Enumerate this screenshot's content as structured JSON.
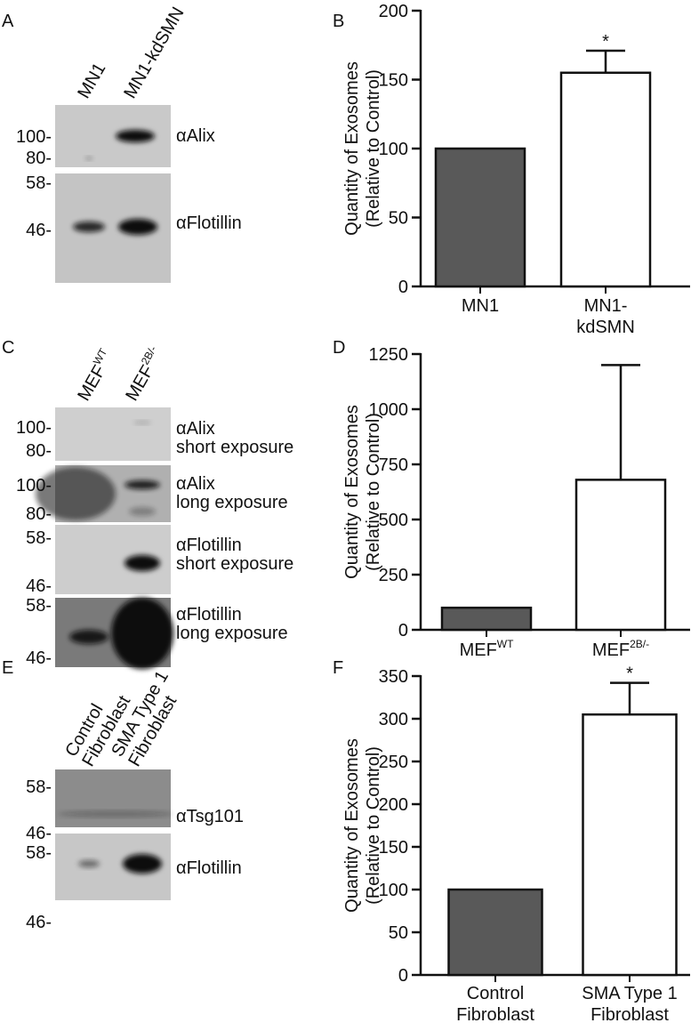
{
  "panels": [
    "A",
    "B",
    "C",
    "D",
    "E",
    "F"
  ],
  "blots": [
    {
      "lanes": [
        {
          "text": "MN1"
        },
        {
          "text": "MN1-kdSMN"
        }
      ],
      "strips": [
        {
          "antibody": "αAlix",
          "markers": [
            "100-",
            "80-"
          ]
        },
        {
          "antibody": "αFlotillin",
          "markers": [
            "58-",
            "46-"
          ]
        }
      ]
    },
    {
      "lanes": [
        {
          "text": "MEF",
          "sup": "WT"
        },
        {
          "text": "MEF",
          "sup": "2B/-"
        }
      ],
      "strips": [
        {
          "antibody": "αAlix",
          "exposure": "short exposure",
          "markers": [
            "100-",
            "80-"
          ]
        },
        {
          "antibody": "αAlix",
          "exposure": "long exposure",
          "markers": [
            "100-",
            "80-"
          ]
        },
        {
          "antibody": "αFlotillin",
          "exposure": "short exposure",
          "markers": [
            "58-",
            "46-"
          ]
        },
        {
          "antibody": "αFlotillin",
          "exposure": "long exposure",
          "markers": [
            "58-",
            "46-"
          ]
        }
      ]
    },
    {
      "lanes": [
        {
          "lines": [
            "Control",
            "Fibroblast"
          ]
        },
        {
          "lines": [
            "SMA Type 1",
            "Fibroblast"
          ]
        }
      ],
      "strips": [
        {
          "antibody": "αTsg101",
          "markers": [
            "58-",
            "46-"
          ]
        },
        {
          "antibody": "αFlotillin",
          "markers": [
            "58-",
            "46-"
          ]
        }
      ]
    }
  ],
  "chart_data": [
    {
      "type": "bar",
      "ylabel": [
        "Quantity of Exosomes",
        "(Relative to Control)"
      ],
      "categories": [
        {
          "lines": [
            "MN1"
          ]
        },
        {
          "lines": [
            "MN1-",
            "kdSMN"
          ]
        }
      ],
      "values": [
        100,
        155
      ],
      "errors": [
        0,
        16
      ],
      "annotations": [
        null,
        "*"
      ],
      "colors": [
        "#595959",
        "#ffffff"
      ],
      "ylim": [
        0,
        200
      ],
      "yticks": [
        0,
        50,
        100,
        150,
        200
      ]
    },
    {
      "type": "bar",
      "ylabel": [
        "Quantity of Exosomes",
        "(Relative to Control)"
      ],
      "categories": [
        {
          "text": "MEF",
          "sup": "WT"
        },
        {
          "text": "MEF",
          "sup": "2B/-"
        }
      ],
      "values": [
        100,
        680
      ],
      "errors": [
        0,
        520
      ],
      "annotations": [
        null,
        null
      ],
      "colors": [
        "#595959",
        "#ffffff"
      ],
      "ylim": [
        0,
        1250
      ],
      "yticks": [
        0,
        250,
        500,
        750,
        1000,
        1250
      ]
    },
    {
      "type": "bar",
      "ylabel": [
        "Quantity of Exosomes",
        "(Relative to Control)"
      ],
      "categories": [
        {
          "lines": [
            "Control",
            "Fibroblast"
          ]
        },
        {
          "lines": [
            "SMA Type 1",
            "Fibroblast"
          ]
        }
      ],
      "values": [
        100,
        305
      ],
      "errors": [
        0,
        37
      ],
      "annotations": [
        null,
        "*"
      ],
      "colors": [
        "#595959",
        "#ffffff"
      ],
      "ylim": [
        0,
        350
      ],
      "yticks": [
        0,
        50,
        100,
        150,
        200,
        250,
        300,
        350
      ]
    }
  ]
}
